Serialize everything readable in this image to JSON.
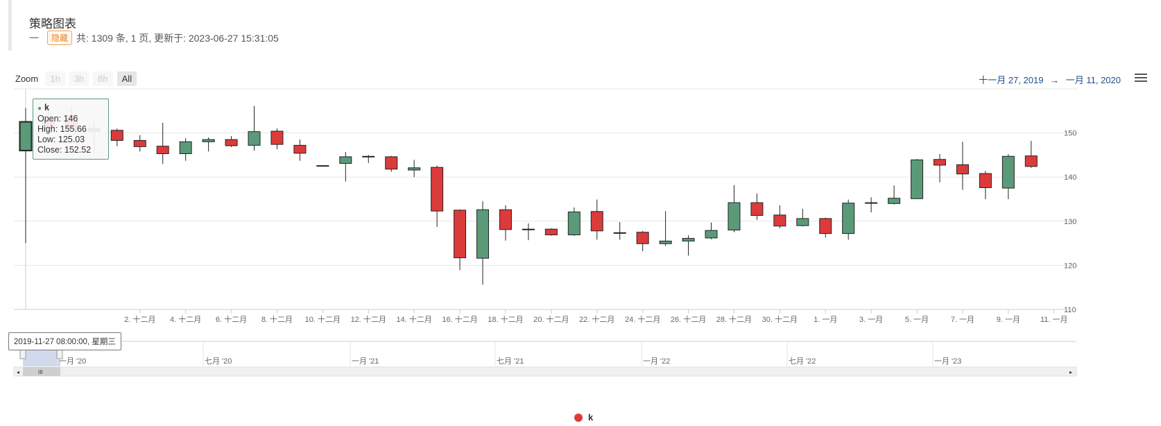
{
  "header": {
    "title": "策略图表",
    "dash": "一",
    "badge": "隐藏",
    "summary": "共: 1309 条, 1 页, 更新于: 2023-06-27 15:31:05"
  },
  "zoom": {
    "label": "Zoom",
    "buttons": [
      "1h",
      "3h",
      "8h",
      "All"
    ],
    "active": "All"
  },
  "range": {
    "from": "十一月 27, 2019",
    "arrow": "→",
    "to": "一月 11, 2020"
  },
  "tooltip": {
    "series": "k",
    "open": "Open: 146",
    "high": "High: 155.66",
    "low": "Low: 125.03",
    "close": "Close: 152.52"
  },
  "crosshair_label": "2019-11-27 08:00:00, 星期三",
  "legend": {
    "name": "k",
    "color": "#dc3b3b"
  },
  "chart_data": {
    "type": "candlestick",
    "series_name": "k",
    "up_color": "#5a9a78",
    "down_color": "#dc3b3b",
    "ylim": [
      110,
      160
    ],
    "yticks": [
      110,
      120,
      130,
      140,
      150
    ],
    "xtick_labels": [
      "2. 十二月",
      "4. 十二月",
      "6. 十二月",
      "8. 十二月",
      "10. 十二月",
      "12. 十二月",
      "14. 十二月",
      "16. 十二月",
      "18. 十二月",
      "20. 十二月",
      "22. 十二月",
      "24. 十二月",
      "26. 十二月",
      "28. 十二月",
      "30. 十二月",
      "1. 一月",
      "3. 一月",
      "5. 一月",
      "7. 一月",
      "9. 一月",
      "11. 一月"
    ],
    "candles": [
      {
        "date": "2019-11-27",
        "o": 146,
        "h": 155.66,
        "l": 125.03,
        "c": 152.52
      },
      {
        "date": "2019-11-28",
        "o": 153,
        "h": 155,
        "l": 149,
        "c": 151
      },
      {
        "date": "2019-11-29",
        "o": 154,
        "h": 156,
        "l": 151,
        "c": 150.8
      },
      {
        "date": "2019-11-30",
        "o": 151,
        "h": 152.5,
        "l": 145.5,
        "c": 150.4
      },
      {
        "date": "2019-12-01",
        "o": 150.6,
        "h": 151,
        "l": 147,
        "c": 148.3
      },
      {
        "date": "2019-12-02",
        "o": 148.3,
        "h": 149.5,
        "l": 145.8,
        "c": 146.9
      },
      {
        "date": "2019-12-03",
        "o": 147,
        "h": 152.3,
        "l": 143,
        "c": 145.3
      },
      {
        "date": "2019-12-04",
        "o": 145.3,
        "h": 148.8,
        "l": 143.7,
        "c": 148
      },
      {
        "date": "2019-12-05",
        "o": 148,
        "h": 149,
        "l": 145.8,
        "c": 148.5
      },
      {
        "date": "2019-12-06",
        "o": 148.5,
        "h": 149.3,
        "l": 146.8,
        "c": 147.1
      },
      {
        "date": "2019-12-07",
        "o": 147.2,
        "h": 156.1,
        "l": 146,
        "c": 150.3
      },
      {
        "date": "2019-12-08",
        "o": 150.4,
        "h": 151,
        "l": 146.3,
        "c": 147.4
      },
      {
        "date": "2019-12-09",
        "o": 147.2,
        "h": 148.5,
        "l": 143.7,
        "c": 145.4
      },
      {
        "date": "2019-12-10",
        "o": 142.6,
        "h": 142.6,
        "l": 142.6,
        "c": 142.5
      },
      {
        "date": "2019-12-11",
        "o": 143.1,
        "h": 145.7,
        "l": 139,
        "c": 144.6
      },
      {
        "date": "2019-12-12",
        "o": 144.7,
        "h": 145,
        "l": 143.2,
        "c": 144.6
      },
      {
        "date": "2019-12-13",
        "o": 144.6,
        "h": 144.8,
        "l": 141.2,
        "c": 141.8
      },
      {
        "date": "2019-12-14",
        "o": 141.6,
        "h": 143.9,
        "l": 140,
        "c": 142.1
      },
      {
        "date": "2019-12-15",
        "o": 142.2,
        "h": 142.6,
        "l": 128.7,
        "c": 132.3
      },
      {
        "date": "2019-12-16",
        "o": 132.5,
        "h": 132.7,
        "l": 118.9,
        "c": 121.7
      },
      {
        "date": "2019-12-17",
        "o": 121.6,
        "h": 134.5,
        "l": 115.6,
        "c": 132.6
      },
      {
        "date": "2019-12-18",
        "o": 132.6,
        "h": 133.6,
        "l": 125.6,
        "c": 128.1
      },
      {
        "date": "2019-12-19",
        "o": 128.2,
        "h": 129.5,
        "l": 125.7,
        "c": 128.2
      },
      {
        "date": "2019-12-20",
        "o": 128.2,
        "h": 128.4,
        "l": 126.7,
        "c": 126.9
      },
      {
        "date": "2019-12-21",
        "o": 126.9,
        "h": 133.1,
        "l": 126.7,
        "c": 132.1
      },
      {
        "date": "2019-12-22",
        "o": 132.2,
        "h": 134.9,
        "l": 125.8,
        "c": 127.8
      },
      {
        "date": "2019-12-23",
        "o": 127.3,
        "h": 129.8,
        "l": 125.8,
        "c": 127.4
      },
      {
        "date": "2019-12-24",
        "o": 127.5,
        "h": 127.8,
        "l": 123.2,
        "c": 124.9
      },
      {
        "date": "2019-12-25",
        "o": 124.9,
        "h": 132.3,
        "l": 124.4,
        "c": 125.5
      },
      {
        "date": "2019-12-26",
        "o": 125.5,
        "h": 126.8,
        "l": 122.2,
        "c": 126.1
      },
      {
        "date": "2019-12-27",
        "o": 126.2,
        "h": 129.7,
        "l": 125.9,
        "c": 127.9
      },
      {
        "date": "2019-12-28",
        "o": 128,
        "h": 138.2,
        "l": 127.5,
        "c": 134.2
      },
      {
        "date": "2019-12-29",
        "o": 134.2,
        "h": 136.3,
        "l": 130.3,
        "c": 131.3
      },
      {
        "date": "2019-12-30",
        "o": 131.4,
        "h": 133.6,
        "l": 128.4,
        "c": 128.9
      },
      {
        "date": "2019-12-31",
        "o": 129,
        "h": 132.8,
        "l": 128.8,
        "c": 130.6
      },
      {
        "date": "2020-01-01",
        "o": 130.6,
        "h": 130.8,
        "l": 126.3,
        "c": 127.2
      },
      {
        "date": "2020-01-02",
        "o": 127.2,
        "h": 134.9,
        "l": 125.8,
        "c": 134.1
      },
      {
        "date": "2020-01-03",
        "o": 134.1,
        "h": 135.4,
        "l": 132,
        "c": 134.2
      },
      {
        "date": "2020-01-04",
        "o": 134,
        "h": 138.1,
        "l": 133.8,
        "c": 135.2
      },
      {
        "date": "2020-01-05",
        "o": 135.1,
        "h": 144.1,
        "l": 135,
        "c": 143.9
      },
      {
        "date": "2020-01-06",
        "o": 144,
        "h": 145.2,
        "l": 138.8,
        "c": 142.7
      },
      {
        "date": "2020-01-07",
        "o": 142.8,
        "h": 148,
        "l": 137.1,
        "c": 140.7
      },
      {
        "date": "2020-01-08",
        "o": 140.8,
        "h": 141.4,
        "l": 135,
        "c": 137.6
      },
      {
        "date": "2020-01-09",
        "o": 137.5,
        "h": 145.2,
        "l": 135,
        "c": 144.7
      },
      {
        "date": "2020-01-10",
        "o": 144.8,
        "h": 148.2,
        "l": 142.1,
        "c": 142.4
      }
    ]
  },
  "navigator": {
    "labels": [
      "一月 '20",
      "七月 '20",
      "一月 '21",
      "七月 '21",
      "一月 '22",
      "七月 '22",
      "一月 '23"
    ]
  }
}
